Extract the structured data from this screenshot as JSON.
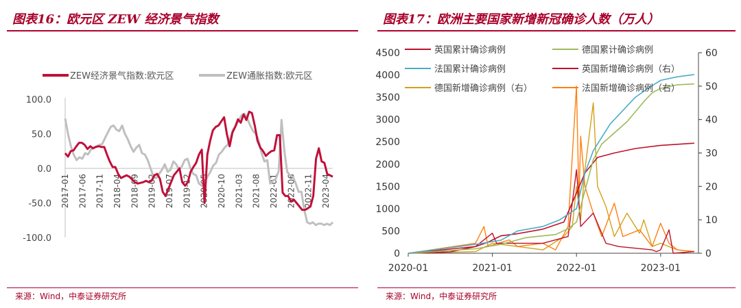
{
  "left": {
    "title": "图表16：欧元区 ZEW 经济景气指数",
    "source": "来源：Wind，中泰证券研究所",
    "chart_data": {
      "type": "line",
      "ylim": [
        -100,
        100
      ],
      "y_ticks": [
        "100.0",
        "50.0",
        "0.0",
        "-50.0",
        "-100.0"
      ],
      "x_ticks": [
        "2017-01",
        "2017-06",
        "2017-11",
        "2018-04",
        "2018-09",
        "2019-02",
        "2019-07",
        "2019-12",
        "2020-05",
        "2020-10",
        "2021-03",
        "2021-08",
        "2022-01",
        "2022-06",
        "2022-11",
        "2023-04"
      ],
      "series": [
        {
          "name": "ZEW经济景气指数:欧元区",
          "color": "#c0103a",
          "values": [
            22,
            17,
            25,
            26,
            32,
            37,
            37,
            34,
            28,
            32,
            29,
            31,
            32,
            31,
            31,
            20,
            10,
            2,
            2,
            -8,
            -14,
            -12,
            -10,
            -12,
            -16,
            -20,
            -22,
            -21,
            -20,
            -18,
            -20,
            -18,
            -10,
            -8,
            -15,
            -34,
            -40,
            -30,
            -20,
            -10,
            -5,
            0,
            -20,
            -25,
            -20,
            -5,
            2,
            8,
            20,
            27,
            -50,
            20,
            40,
            55,
            60,
            62,
            68,
            74,
            50,
            32,
            52,
            60,
            71,
            66,
            78,
            70,
            82,
            80,
            62,
            40,
            30,
            25,
            18,
            22,
            25,
            26,
            48,
            48,
            -35,
            -40,
            -40,
            -48,
            -45,
            -50,
            -55,
            -60,
            -60,
            -58,
            -55,
            -40,
            14,
            29,
            10,
            8,
            -8,
            -10,
            -12
          ]
        },
        {
          "name": "ZEW通胀指数:欧元区",
          "color": "#bfbfbf",
          "values": [
            72,
            50,
            32,
            20,
            12,
            16,
            14,
            22,
            20,
            27,
            30,
            32,
            34,
            35,
            44,
            52,
            60,
            62,
            56,
            54,
            62,
            50,
            42,
            32,
            24,
            30,
            34,
            22,
            20,
            12,
            0,
            -12,
            -14,
            -8,
            -2,
            6,
            -5,
            -2,
            10,
            6,
            -2,
            3,
            12,
            14,
            0,
            -8,
            -10,
            -22,
            -25,
            -20,
            -12,
            -5,
            4,
            8,
            20,
            24,
            30,
            34,
            44,
            56,
            62,
            70,
            77,
            79,
            72,
            62,
            54,
            50,
            40,
            22,
            10,
            12,
            -22,
            -18,
            -15,
            -4,
            70,
            25,
            -5,
            -10,
            -12,
            -22,
            -34,
            -34,
            -60,
            -78,
            -80,
            -78,
            -82,
            -80,
            -80,
            -82,
            -80,
            -82,
            -78
          ]
        }
      ]
    }
  },
  "right": {
    "title": "图表17：欧洲主要国家新增新冠确诊人数（万人）",
    "source": "来源：Wind，中泰证券研究所",
    "chart_data": {
      "type": "line",
      "y_left_lim": [
        0,
        4500
      ],
      "y_left_ticks": [
        "4500",
        "4000",
        "3500",
        "3000",
        "2500",
        "2000",
        "1500",
        "1000",
        "500",
        "0"
      ],
      "y_right_lim": [
        0,
        60
      ],
      "y_right_ticks": [
        "60",
        "50",
        "40",
        "30",
        "20",
        "10",
        "0"
      ],
      "x_ticks": [
        "2020-01",
        "2021-01",
        "2022-01",
        "2023-01"
      ],
      "series": [
        {
          "name": "英国累计确诊病例",
          "color": "#c0102a",
          "axis": "left",
          "points": [
            [
              2020.0,
              0
            ],
            [
              2020.5,
              30
            ],
            [
              2020.8,
              150
            ],
            [
              2020.95,
              250
            ],
            [
              2021.1,
              390
            ],
            [
              2021.3,
              440
            ],
            [
              2021.6,
              540
            ],
            [
              2021.85,
              700
            ],
            [
              2022.0,
              1350
            ],
            [
              2022.1,
              1800
            ],
            [
              2022.25,
              2150
            ],
            [
              2022.45,
              2250
            ],
            [
              2022.7,
              2350
            ],
            [
              2023.0,
              2420
            ],
            [
              2023.4,
              2470
            ]
          ]
        },
        {
          "name": "德国累计确诊病例",
          "color": "#9bbb59",
          "axis": "left",
          "points": [
            [
              2020.0,
              0
            ],
            [
              2020.8,
              100
            ],
            [
              2021.1,
              200
            ],
            [
              2021.4,
              350
            ],
            [
              2021.75,
              420
            ],
            [
              2021.9,
              550
            ],
            [
              2022.0,
              700
            ],
            [
              2022.1,
              1400
            ],
            [
              2022.2,
              2100
            ],
            [
              2022.3,
              2450
            ],
            [
              2022.6,
              2950
            ],
            [
              2022.8,
              3400
            ],
            [
              2022.9,
              3600
            ],
            [
              2023.0,
              3700
            ],
            [
              2023.2,
              3780
            ],
            [
              2023.4,
              3800
            ]
          ]
        },
        {
          "name": "法国累计确诊病例",
          "color": "#4bacc6",
          "axis": "left",
          "points": [
            [
              2020.0,
              0
            ],
            [
              2020.8,
              200
            ],
            [
              2021.1,
              290
            ],
            [
              2021.3,
              500
            ],
            [
              2021.6,
              600
            ],
            [
              2021.8,
              750
            ],
            [
              2022.0,
              1000
            ],
            [
              2022.1,
              1800
            ],
            [
              2022.2,
              2300
            ],
            [
              2022.4,
              2900
            ],
            [
              2022.6,
              3300
            ],
            [
              2022.7,
              3500
            ],
            [
              2022.85,
              3700
            ],
            [
              2023.0,
              3880
            ],
            [
              2023.2,
              3960
            ],
            [
              2023.4,
              4010
            ]
          ]
        },
        {
          "name": "英国新增确诊病例（右）",
          "color": "#c0102a",
          "axis": "right",
          "points": [
            [
              2020.0,
              0
            ],
            [
              2020.8,
              2
            ],
            [
              2021.0,
              6
            ],
            [
              2021.05,
              3
            ],
            [
              2021.6,
              3
            ],
            [
              2021.9,
              5
            ],
            [
              2022.0,
              25
            ],
            [
              2022.05,
              8
            ],
            [
              2022.2,
              12
            ],
            [
              2022.35,
              3
            ],
            [
              2022.5,
              2
            ],
            [
              2022.9,
              1
            ],
            [
              2022.95,
              0.5
            ],
            [
              2023.0,
              1
            ],
            [
              2023.1,
              7
            ],
            [
              2023.15,
              0
            ],
            [
              2023.4,
              0.5
            ]
          ]
        },
        {
          "name": "德国新增确诊病例（右）",
          "color": "#d4a017",
          "axis": "right",
          "points": [
            [
              2020.0,
              0
            ],
            [
              2020.8,
              0.5
            ],
            [
              2021.0,
              3
            ],
            [
              2021.3,
              2
            ],
            [
              2021.6,
              1
            ],
            [
              2021.85,
              5
            ],
            [
              2021.95,
              8
            ],
            [
              2022.0,
              20
            ],
            [
              2022.05,
              10
            ],
            [
              2022.1,
              25
            ],
            [
              2022.2,
              45
            ],
            [
              2022.25,
              20
            ],
            [
              2022.35,
              14
            ],
            [
              2022.45,
              5
            ],
            [
              2022.6,
              12
            ],
            [
              2022.75,
              6
            ],
            [
              2022.8,
              10
            ],
            [
              2022.9,
              2
            ],
            [
              2023.0,
              3
            ],
            [
              2023.2,
              1
            ],
            [
              2023.4,
              0.5
            ]
          ]
        },
        {
          "name": "法国新增确诊病例（右）",
          "color": "#ff7f0e",
          "axis": "right",
          "points": [
            [
              2020.0,
              0
            ],
            [
              2020.8,
              3
            ],
            [
              2020.9,
              8
            ],
            [
              2020.95,
              2
            ],
            [
              2021.2,
              4
            ],
            [
              2021.3,
              2
            ],
            [
              2021.6,
              3
            ],
            [
              2021.75,
              1
            ],
            [
              2021.9,
              8
            ],
            [
              2022.0,
              50
            ],
            [
              2022.03,
              15
            ],
            [
              2022.05,
              35
            ],
            [
              2022.1,
              20
            ],
            [
              2022.2,
              12
            ],
            [
              2022.3,
              5
            ],
            [
              2022.45,
              15
            ],
            [
              2022.55,
              5
            ],
            [
              2022.75,
              7
            ],
            [
              2022.9,
              2
            ],
            [
              2023.0,
              9
            ],
            [
              2023.1,
              3
            ],
            [
              2023.2,
              1
            ],
            [
              2023.4,
              0.5
            ]
          ]
        }
      ]
    }
  }
}
